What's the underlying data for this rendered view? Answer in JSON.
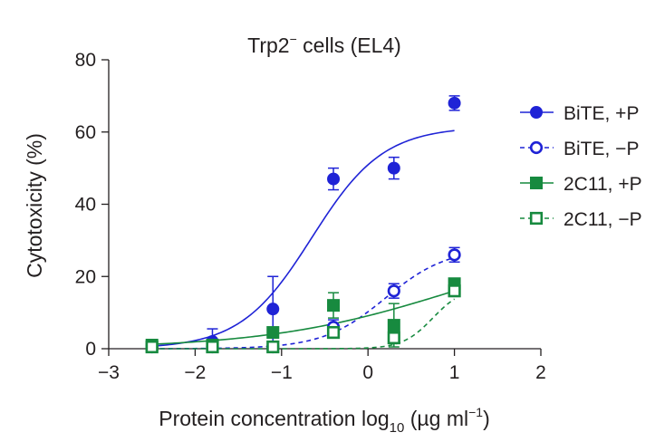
{
  "chart_data": {
    "type": "scatter",
    "title": "Trp2",
    "title_superscript": "−",
    "title_suffix": " cells (EL4)",
    "xlabel": "Protein concentration log",
    "xlabel_subscript": "10",
    "xlabel_unit_prefix": " (µg ml",
    "xlabel_unit_superscript": "−1",
    "xlabel_unit_suffix": ")",
    "ylabel": "Cytotoxicity (%)",
    "xlim": [
      -3,
      2
    ],
    "ylim": [
      0,
      80
    ],
    "x_ticks": [
      -3,
      -2,
      -1,
      0,
      1,
      2
    ],
    "x_tick_labels": [
      "−3",
      "−2",
      "−1",
      "0",
      "1",
      "2"
    ],
    "y_ticks": [
      0,
      20,
      40,
      60,
      80
    ],
    "y_tick_labels": [
      "0",
      "20",
      "40",
      "60",
      "80"
    ],
    "grid": false,
    "legend_position": "right",
    "series": [
      {
        "name": "BiTE, +P",
        "color": "#1f23d6",
        "marker": "circle",
        "filled": true,
        "line_style": "solid",
        "x": [
          -2.5,
          -1.8,
          -1.1,
          -0.4,
          0.3,
          1.0
        ],
        "y": [
          1,
          2,
          11,
          47,
          50,
          68
        ],
        "err": [
          0.5,
          3.5,
          9,
          3,
          3,
          2
        ],
        "fit": {
          "bottom": 0,
          "top": 61.5,
          "ec50": -0.65,
          "hill": 1.05
        }
      },
      {
        "name": "BiTE, −P",
        "color": "#1f23d6",
        "marker": "circle",
        "filled": false,
        "line_style": "dashed",
        "x": [
          -2.5,
          -1.8,
          -1.1,
          -0.4,
          0.3,
          1.0
        ],
        "y": [
          0.5,
          0.5,
          0.5,
          6,
          16,
          26
        ],
        "err": [
          0.3,
          0.3,
          0.5,
          2,
          2,
          2
        ],
        "fit": {
          "bottom": 0,
          "top": 28,
          "ec50": 0.2,
          "hill": 1.2
        }
      },
      {
        "name": "2C11, +P",
        "color": "#178a3f",
        "marker": "square",
        "filled": true,
        "line_style": "solid",
        "x": [
          -2.5,
          -1.8,
          -1.1,
          -0.4,
          0.3,
          1.0
        ],
        "y": [
          1,
          1,
          4.5,
          12,
          6.5,
          18
        ],
        "err": [
          0.5,
          0.5,
          1,
          3.5,
          6,
          1.5
        ],
        "fit": {
          "bottom": 0,
          "top": 32,
          "ec50": 1.0,
          "hill": 0.4
        }
      },
      {
        "name": "2C11, −P",
        "color": "#178a3f",
        "marker": "square",
        "filled": false,
        "line_style": "dashed",
        "x": [
          -2.5,
          -1.8,
          -1.1,
          -0.4,
          0.3,
          1.0
        ],
        "y": [
          0.5,
          0.5,
          0.5,
          4.5,
          3,
          16
        ],
        "err": [
          0.3,
          0.3,
          0.3,
          1,
          1,
          1.5
        ],
        "fit": {
          "bottom": 0,
          "top": 17,
          "ec50": 0.75,
          "hill": 2.5
        }
      }
    ]
  }
}
